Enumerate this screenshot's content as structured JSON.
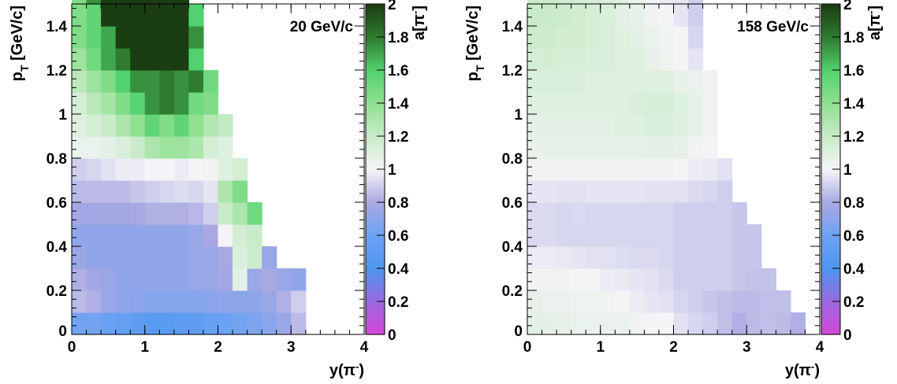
{
  "colorscale": {
    "stops": [
      {
        "v": 0.0,
        "color": "#d546d6"
      },
      {
        "v": 0.2,
        "color": "#9a68e0"
      },
      {
        "v": 0.4,
        "color": "#4d96ef"
      },
      {
        "v": 0.6,
        "color": "#6ca2f3"
      },
      {
        "v": 0.8,
        "color": "#a9a8e2"
      },
      {
        "v": 1.0,
        "color": "#f4f4f7"
      },
      {
        "v": 1.2,
        "color": "#c9ebc9"
      },
      {
        "v": 1.4,
        "color": "#8fe08f"
      },
      {
        "v": 1.6,
        "color": "#52d16e"
      },
      {
        "v": 1.8,
        "color": "#2f7c2f"
      },
      {
        "v": 2.0,
        "color": "#1b3d12"
      }
    ]
  },
  "chart_data": [
    {
      "type": "heatmap",
      "title": "20 GeV/c",
      "xlabel": "y(π⁻)",
      "ylabel": "p_T [GeV/c]",
      "zlabel": "a[π⁻]",
      "xlim": [
        0,
        4
      ],
      "ylim": [
        0,
        1.5
      ],
      "zlim": [
        0,
        2
      ],
      "x_ticks": [
        "0",
        "1",
        "2",
        "3",
        "4"
      ],
      "y_ticks": [
        "0",
        "0.2",
        "0.4",
        "0.6",
        "0.8",
        "1",
        "1.2",
        "1.4"
      ],
      "z_ticks": [
        "0",
        "0.2",
        "0.4",
        "0.6",
        "0.8",
        "1",
        "1.2",
        "1.4",
        "1.6",
        "1.8",
        "2"
      ],
      "x_bin_width": 0.2,
      "y_bin_width": 0.1,
      "z": [
        [
          0.62,
          0.62,
          0.58,
          0.55,
          0.52,
          0.48,
          0.48,
          0.5,
          0.52,
          0.56,
          0.6,
          0.62,
          0.66,
          0.7,
          0.75,
          0.85
        ],
        [
          0.85,
          0.82,
          0.75,
          0.72,
          0.7,
          0.68,
          0.68,
          0.68,
          0.68,
          0.7,
          0.72,
          0.7,
          0.72,
          0.75,
          0.82,
          0.9
        ],
        [
          0.82,
          0.78,
          0.75,
          0.72,
          0.72,
          0.72,
          0.72,
          0.72,
          0.75,
          0.75,
          0.78,
          1.08,
          0.75,
          0.8,
          0.75,
          0.72
        ],
        [
          0.75,
          0.72,
          0.72,
          0.72,
          0.72,
          0.72,
          0.72,
          0.72,
          0.75,
          0.75,
          0.8,
          1.12,
          1.18,
          0.75
        ],
        [
          0.72,
          0.72,
          0.72,
          0.72,
          0.72,
          0.72,
          0.72,
          0.72,
          0.75,
          0.8,
          1.0,
          1.15,
          1.2
        ],
        [
          0.78,
          0.78,
          0.78,
          0.78,
          0.8,
          0.82,
          0.82,
          0.82,
          0.84,
          0.9,
          1.2,
          1.3,
          1.5
        ],
        [
          0.85,
          0.85,
          0.85,
          0.85,
          0.88,
          0.9,
          0.92,
          0.94,
          0.92,
          0.96,
          1.3,
          1.45
        ],
        [
          0.9,
          0.92,
          0.95,
          0.98,
          0.98,
          1.0,
          1.0,
          0.98,
          1.0,
          1.02,
          1.1,
          1.15
        ],
        [
          1.05,
          1.05,
          1.08,
          1.12,
          1.2,
          1.3,
          1.35,
          1.35,
          1.3,
          1.15,
          1.1
        ],
        [
          1.1,
          1.15,
          1.2,
          1.3,
          1.4,
          1.55,
          1.45,
          1.55,
          1.4,
          1.28,
          1.22
        ],
        [
          1.15,
          1.25,
          1.32,
          1.45,
          1.58,
          1.75,
          1.8,
          1.75,
          1.5,
          1.45
        ],
        [
          1.25,
          1.35,
          1.45,
          1.6,
          1.75,
          1.75,
          1.8,
          1.75,
          1.8,
          1.5
        ],
        [
          1.35,
          1.5,
          1.7,
          1.8,
          2.0,
          2.0,
          2.0,
          2.0,
          1.6
        ],
        [
          1.45,
          1.55,
          1.7,
          2.0,
          2.0,
          2.0,
          2.0,
          2.0,
          1.75
        ],
        [
          1.45,
          1.55,
          2.0,
          2.0,
          2.0,
          2.0,
          2.0,
          2.0,
          1.6
        ],
        [
          1.45,
          1.75,
          2.0,
          2.0,
          2.0,
          2.0,
          2.0,
          2.0
        ]
      ]
    },
    {
      "type": "heatmap",
      "title": "158 GeV/c",
      "xlabel": "y(π⁻)",
      "ylabel": "p_T [GeV/c]",
      "zlabel": "a[π⁻]",
      "xlim": [
        0,
        4
      ],
      "ylim": [
        0,
        1.5
      ],
      "zlim": [
        0,
        2
      ],
      "x_ticks": [
        "0",
        "1",
        "2",
        "3",
        "4"
      ],
      "y_ticks": [
        "0",
        "0.2",
        "0.4",
        "0.6",
        "0.8",
        "1",
        "1.2",
        "1.4"
      ],
      "z_ticks": [
        "0",
        "0.2",
        "0.4",
        "0.6",
        "0.8",
        "1",
        "1.2",
        "1.4",
        "1.6",
        "1.8",
        "2"
      ],
      "x_bin_width": 0.2,
      "y_bin_width": 0.1,
      "z": [
        [
          1.08,
          1.08,
          1.06,
          1.05,
          1.05,
          1.04,
          1.04,
          1.02,
          1.0,
          1.0,
          0.95,
          0.92,
          0.9,
          0.86,
          0.82,
          0.85,
          0.86,
          0.85,
          0.82
        ],
        [
          1.06,
          1.05,
          1.04,
          1.03,
          1.03,
          1.02,
          1.0,
          0.98,
          0.96,
          0.95,
          0.92,
          0.9,
          0.88,
          0.86,
          0.85,
          0.85,
          0.86,
          0.86
        ],
        [
          1.02,
          1.02,
          1.02,
          1.0,
          1.0,
          0.98,
          0.97,
          0.96,
          0.95,
          0.93,
          0.9,
          0.9,
          0.9,
          0.9,
          0.88,
          0.87,
          0.87
        ],
        [
          0.98,
          0.98,
          0.97,
          0.96,
          0.95,
          0.95,
          0.94,
          0.93,
          0.93,
          0.92,
          0.9,
          0.9,
          0.9,
          0.9,
          0.88,
          0.88
        ],
        [
          0.93,
          0.93,
          0.92,
          0.92,
          0.92,
          0.92,
          0.92,
          0.92,
          0.92,
          0.92,
          0.9,
          0.9,
          0.9,
          0.9,
          0.88,
          0.88
        ],
        [
          0.93,
          0.93,
          0.92,
          0.93,
          0.92,
          0.92,
          0.92,
          0.92,
          0.92,
          0.92,
          0.9,
          0.9,
          0.9,
          0.9,
          0.88
        ],
        [
          0.96,
          0.96,
          0.95,
          0.95,
          0.96,
          0.96,
          0.96,
          0.96,
          0.95,
          0.95,
          0.95,
          0.93,
          0.92,
          0.9
        ],
        [
          1.02,
          1.02,
          1.02,
          1.02,
          1.02,
          1.02,
          1.02,
          1.02,
          1.02,
          1.02,
          1.0,
          0.98,
          0.97,
          0.95
        ],
        [
          1.06,
          1.06,
          1.06,
          1.06,
          1.06,
          1.06,
          1.06,
          1.06,
          1.08,
          1.08,
          1.06,
          1.02,
          1.0
        ],
        [
          1.08,
          1.08,
          1.08,
          1.08,
          1.08,
          1.08,
          1.1,
          1.1,
          1.12,
          1.12,
          1.1,
          1.06,
          1.02
        ],
        [
          1.1,
          1.1,
          1.1,
          1.1,
          1.1,
          1.1,
          1.1,
          1.12,
          1.14,
          1.14,
          1.1,
          1.06,
          1.02
        ],
        [
          1.12,
          1.12,
          1.12,
          1.12,
          1.1,
          1.1,
          1.1,
          1.1,
          1.1,
          1.1,
          1.06,
          1.04,
          1.02
        ],
        [
          1.15,
          1.16,
          1.14,
          1.14,
          1.12,
          1.12,
          1.1,
          1.1,
          1.06,
          1.03,
          1.0,
          0.96
        ],
        [
          1.18,
          1.18,
          1.16,
          1.16,
          1.14,
          1.12,
          1.1,
          1.08,
          1.05,
          1.02,
          1.0,
          0.92
        ],
        [
          1.2,
          1.2,
          1.18,
          1.16,
          1.14,
          1.12,
          1.08,
          1.06,
          1.02,
          1.0,
          0.96,
          0.9
        ],
        [
          1.2,
          1.2,
          1.18,
          1.16,
          1.14,
          1.12,
          1.08,
          1.04,
          1.0,
          0.98,
          0.96,
          0.9
        ]
      ]
    }
  ]
}
